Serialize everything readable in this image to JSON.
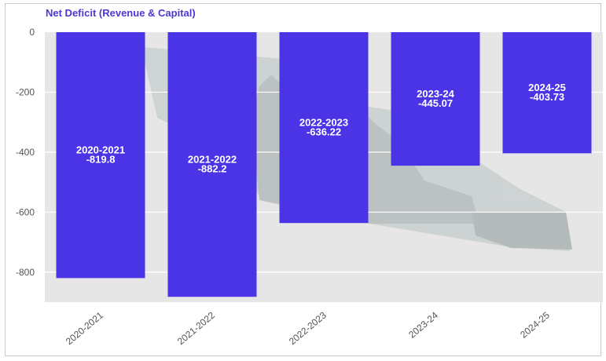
{
  "colors": {
    "bar": "#4b34e6",
    "title": "#4b38d6",
    "plot_background": "#e6e6e6",
    "grid": "#ffffff"
  },
  "chart_data": {
    "type": "bar",
    "title": "Net Deficit (Revenue & Capital)",
    "categories": [
      "2020-2021",
      "2021-2022",
      "2022-2023",
      "2023-24",
      "2024-25"
    ],
    "values": [
      -819.8,
      -882.2,
      -636.22,
      -445.07,
      -403.73
    ],
    "bar_labels": [
      [
        "2020-2021",
        "-819.8"
      ],
      [
        "2021-2022",
        "-882.2"
      ],
      [
        "2022-2023",
        "-636.22"
      ],
      [
        "2023-24",
        "-445.07"
      ],
      [
        "2024-25",
        "-403.73"
      ]
    ],
    "y_ticks": [
      0,
      -200,
      -400,
      -600,
      -800
    ],
    "ylim": [
      -900,
      0
    ],
    "grid": true,
    "legend": "none",
    "background_image": "government building illustration"
  }
}
